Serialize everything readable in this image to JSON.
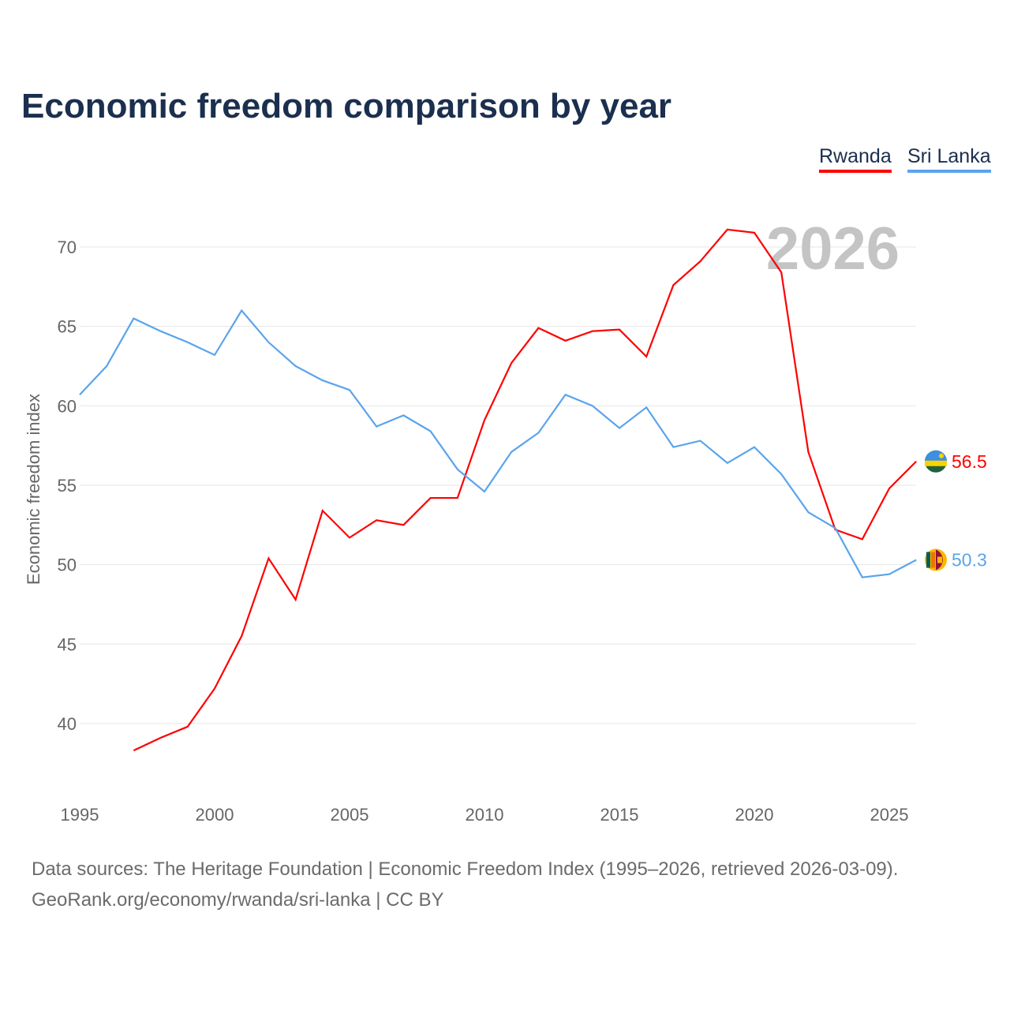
{
  "chart_data": {
    "type": "line",
    "title": "Economic freedom comparison by year",
    "xlabel": "",
    "ylabel": "Economic freedom index",
    "xlim": [
      1995,
      2026
    ],
    "ylim": [
      35,
      72
    ],
    "yticks": [
      40,
      45,
      50,
      55,
      60,
      65,
      70
    ],
    "xticks": [
      1995,
      2000,
      2005,
      2010,
      2015,
      2020,
      2025
    ],
    "grid": true,
    "legend_position": "top-right",
    "current_year_label": "2026",
    "series": [
      {
        "name": "Rwanda",
        "color": "#ff0000",
        "end_label": "56.5",
        "x": [
          1997,
          1998,
          1999,
          2000,
          2001,
          2002,
          2003,
          2004,
          2005,
          2006,
          2007,
          2008,
          2009,
          2010,
          2011,
          2012,
          2013,
          2014,
          2015,
          2016,
          2017,
          2018,
          2019,
          2020,
          2021,
          2022,
          2023,
          2024,
          2025,
          2026
        ],
        "values": [
          38.3,
          39.1,
          39.8,
          42.2,
          45.5,
          50.4,
          47.8,
          53.4,
          51.7,
          52.8,
          52.5,
          54.2,
          54.2,
          59.1,
          62.7,
          64.9,
          64.1,
          64.7,
          64.8,
          63.1,
          67.6,
          69.1,
          71.1,
          70.9,
          68.4,
          57.1,
          52.2,
          51.6,
          54.8,
          56.5
        ]
      },
      {
        "name": "Sri Lanka",
        "color": "#5aa4ec",
        "end_label": "50.3",
        "x": [
          1995,
          1996,
          1997,
          1998,
          1999,
          2000,
          2001,
          2002,
          2003,
          2004,
          2005,
          2006,
          2007,
          2008,
          2009,
          2010,
          2011,
          2012,
          2013,
          2014,
          2015,
          2016,
          2017,
          2018,
          2019,
          2020,
          2021,
          2022,
          2023,
          2024,
          2025,
          2026
        ],
        "values": [
          60.7,
          62.5,
          65.5,
          64.7,
          64.0,
          63.2,
          66.0,
          64.0,
          62.5,
          61.6,
          61.0,
          58.7,
          59.4,
          58.4,
          56.0,
          54.6,
          57.1,
          58.3,
          60.7,
          60.0,
          58.6,
          59.9,
          57.4,
          57.8,
          56.4,
          57.4,
          55.7,
          53.3,
          52.3,
          49.2,
          49.4,
          50.3
        ]
      }
    ]
  },
  "footer": {
    "line1": "Data sources: The Heritage Foundation | Economic Freedom Index (1995–2026, retrieved 2026-03-09).",
    "line2": "GeoRank.org/economy/rwanda/sri-lanka | CC BY"
  }
}
